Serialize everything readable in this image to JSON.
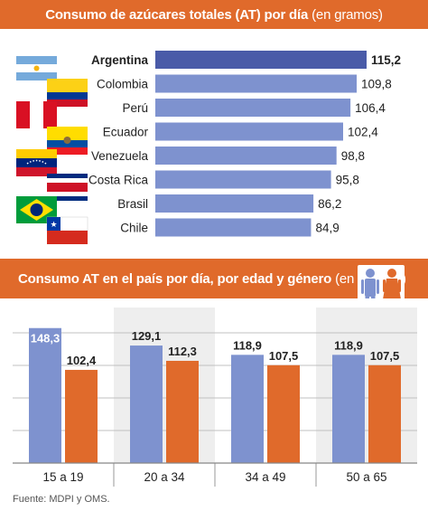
{
  "chart_data": [
    {
      "type": "bar",
      "orientation": "horizontal",
      "title": "Consumo de azúcares totales (AT) por día",
      "title_unit": "(en gramos)",
      "categories": [
        "Argentina",
        "Colombia",
        "Perú",
        "Ecuador",
        "Venezuela",
        "Costa Rica",
        "Brasil",
        "Chile"
      ],
      "values": [
        115.2,
        109.8,
        106.4,
        102.4,
        98.8,
        95.8,
        86.2,
        84.9
      ],
      "value_labels": [
        "115,2",
        "109,8",
        "106,4",
        "102,4",
        "98,8",
        "95,8",
        "86,2",
        "84,9"
      ],
      "highlight": "Argentina",
      "grid": false,
      "colors": {
        "bar": "#7e92cf",
        "highlight_bar": "#4a5ba8"
      }
    },
    {
      "type": "bar",
      "title": "Consumo AT en el país por día, por edad y género",
      "title_unit": "(en gramos)",
      "categories": [
        "15 a 19",
        "20 a 34",
        "34 a 49",
        "50 a 65"
      ],
      "series": [
        {
          "values": [
            148.3,
            129.1,
            118.9,
            118.9
          ],
          "labels": [
            "148,3",
            "129,1",
            "118,9",
            "118,9"
          ]
        },
        {
          "values": [
            102.4,
            112.3,
            107.5,
            107.5
          ],
          "labels": [
            "102,4",
            "112,3",
            "107,5",
            "107,5"
          ]
        }
      ],
      "legend": "icons top-right (male, female)",
      "grid": true,
      "colors": {
        "male": "#7e92cf",
        "female": "#e06a2b",
        "panel_shade": "#eeeeee",
        "grid": "#c0c0c0"
      }
    }
  ],
  "footer": {
    "source": "Fuente: MDPI y OMS."
  },
  "icons": [
    "argentina-flag-icon",
    "colombia-flag-icon",
    "peru-flag-icon",
    "ecuador-flag-icon",
    "venezuela-flag-icon",
    "costa-rica-flag-icon",
    "brasil-flag-icon",
    "chile-flag-icon",
    "male-icon",
    "female-icon"
  ]
}
